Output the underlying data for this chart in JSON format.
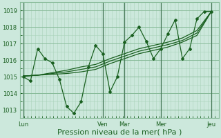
{
  "bg_color": "#cce8dc",
  "grid_major_color": "#88bb99",
  "grid_minor_color": "#aad4bb",
  "line_color": "#1a6020",
  "xlabel": "Pression niveau de la mer( hPa )",
  "xlabel_fontsize": 8,
  "ylim": [
    1012.5,
    1019.5
  ],
  "yticks": [
    1013,
    1014,
    1015,
    1016,
    1017,
    1018,
    1019
  ],
  "ytick_fontsize": 6,
  "xtick_labels": [
    "Lun",
    "Ven",
    "Mar",
    "Mer",
    "Jeu"
  ],
  "xtick_positions": [
    0,
    5.5,
    7,
    9.5,
    13
  ],
  "x_vline_positions": [
    0,
    5.5,
    7,
    9.5,
    13
  ],
  "xlim": [
    -0.2,
    13.5
  ],
  "env1_x": [
    0,
    1,
    2,
    3,
    4,
    5,
    6,
    7,
    8,
    9,
    10,
    11,
    12,
    13
  ],
  "env1_y": [
    1015.05,
    1015.1,
    1015.15,
    1015.2,
    1015.3,
    1015.45,
    1015.8,
    1016.1,
    1016.4,
    1016.6,
    1016.8,
    1017.1,
    1017.5,
    1018.95
  ],
  "env2_x": [
    0,
    1,
    2,
    3,
    4,
    5,
    6,
    7,
    8,
    9,
    10,
    11,
    12,
    13
  ],
  "env2_y": [
    1015.05,
    1015.1,
    1015.2,
    1015.3,
    1015.45,
    1015.6,
    1015.95,
    1016.25,
    1016.55,
    1016.75,
    1016.95,
    1017.2,
    1017.65,
    1018.95
  ],
  "env3_x": [
    0,
    1,
    2,
    3,
    4,
    5,
    6,
    7,
    8,
    9,
    10,
    11,
    12,
    13
  ],
  "env3_y": [
    1015.05,
    1015.1,
    1015.25,
    1015.4,
    1015.6,
    1015.75,
    1016.1,
    1016.4,
    1016.7,
    1016.9,
    1017.1,
    1017.35,
    1017.8,
    1018.95
  ],
  "main_x": [
    0,
    0.5,
    1,
    1.5,
    2,
    2.5,
    3,
    3.5,
    4,
    4.5,
    5,
    5.5,
    6,
    6.5,
    7,
    7.5,
    8,
    8.5,
    9,
    9.5,
    10,
    10.5,
    11,
    11.5,
    12,
    12.5,
    13
  ],
  "main_y": [
    1015.0,
    1014.75,
    1016.7,
    1016.1,
    1015.85,
    1014.85,
    1013.2,
    1012.8,
    1013.5,
    1015.6,
    1016.9,
    1016.4,
    1014.1,
    1015.0,
    1017.1,
    1017.5,
    1018.0,
    1017.15,
    1016.1,
    1016.7,
    1017.6,
    1018.45,
    1016.1,
    1016.7,
    1018.5,
    1018.95,
    1018.95
  ],
  "vline_color": "#447755",
  "tick_color": "#1a6020",
  "marker": "D",
  "markersize": 2.0,
  "linewidth": 0.9
}
